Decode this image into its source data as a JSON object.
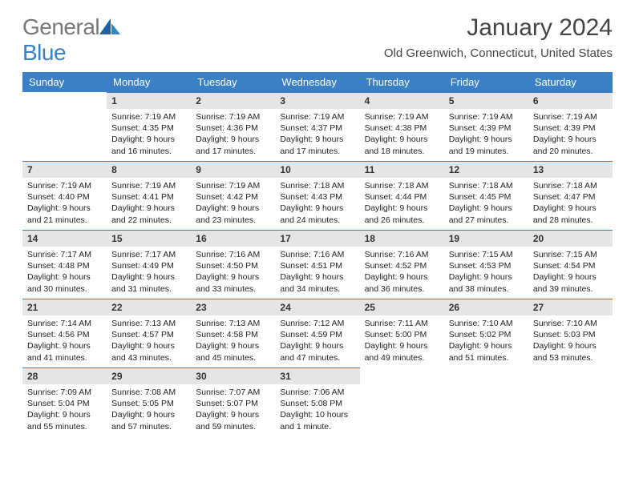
{
  "brand": {
    "part1": "General",
    "part2": "Blue"
  },
  "title": "January 2024",
  "location": "Old Greenwich, Connecticut, United States",
  "colors": {
    "header_bg": "#3b7fc4",
    "header_text": "#ffffff",
    "daynum_bg": "#e5e5e5",
    "daynum_border": "#3b7fc4",
    "page_bg": "#ffffff",
    "text": "#222222",
    "title_color": "#444444"
  },
  "font": {
    "family": "Arial",
    "title_size": 30,
    "header_size": 13,
    "body_size": 10.5,
    "daynum_size": 12
  },
  "weekdays": [
    "Sunday",
    "Monday",
    "Tuesday",
    "Wednesday",
    "Thursday",
    "Friday",
    "Saturday"
  ],
  "weeks": [
    [
      null,
      {
        "n": "1",
        "sr": "Sunrise: 7:19 AM",
        "ss": "Sunset: 4:35 PM",
        "dl": "Daylight: 9 hours and 16 minutes."
      },
      {
        "n": "2",
        "sr": "Sunrise: 7:19 AM",
        "ss": "Sunset: 4:36 PM",
        "dl": "Daylight: 9 hours and 17 minutes."
      },
      {
        "n": "3",
        "sr": "Sunrise: 7:19 AM",
        "ss": "Sunset: 4:37 PM",
        "dl": "Daylight: 9 hours and 17 minutes."
      },
      {
        "n": "4",
        "sr": "Sunrise: 7:19 AM",
        "ss": "Sunset: 4:38 PM",
        "dl": "Daylight: 9 hours and 18 minutes."
      },
      {
        "n": "5",
        "sr": "Sunrise: 7:19 AM",
        "ss": "Sunset: 4:39 PM",
        "dl": "Daylight: 9 hours and 19 minutes."
      },
      {
        "n": "6",
        "sr": "Sunrise: 7:19 AM",
        "ss": "Sunset: 4:39 PM",
        "dl": "Daylight: 9 hours and 20 minutes."
      }
    ],
    [
      {
        "n": "7",
        "sr": "Sunrise: 7:19 AM",
        "ss": "Sunset: 4:40 PM",
        "dl": "Daylight: 9 hours and 21 minutes."
      },
      {
        "n": "8",
        "sr": "Sunrise: 7:19 AM",
        "ss": "Sunset: 4:41 PM",
        "dl": "Daylight: 9 hours and 22 minutes."
      },
      {
        "n": "9",
        "sr": "Sunrise: 7:19 AM",
        "ss": "Sunset: 4:42 PM",
        "dl": "Daylight: 9 hours and 23 minutes."
      },
      {
        "n": "10",
        "sr": "Sunrise: 7:18 AM",
        "ss": "Sunset: 4:43 PM",
        "dl": "Daylight: 9 hours and 24 minutes."
      },
      {
        "n": "11",
        "sr": "Sunrise: 7:18 AM",
        "ss": "Sunset: 4:44 PM",
        "dl": "Daylight: 9 hours and 26 minutes."
      },
      {
        "n": "12",
        "sr": "Sunrise: 7:18 AM",
        "ss": "Sunset: 4:45 PM",
        "dl": "Daylight: 9 hours and 27 minutes."
      },
      {
        "n": "13",
        "sr": "Sunrise: 7:18 AM",
        "ss": "Sunset: 4:47 PM",
        "dl": "Daylight: 9 hours and 28 minutes."
      }
    ],
    [
      {
        "n": "14",
        "sr": "Sunrise: 7:17 AM",
        "ss": "Sunset: 4:48 PM",
        "dl": "Daylight: 9 hours and 30 minutes."
      },
      {
        "n": "15",
        "sr": "Sunrise: 7:17 AM",
        "ss": "Sunset: 4:49 PM",
        "dl": "Daylight: 9 hours and 31 minutes."
      },
      {
        "n": "16",
        "sr": "Sunrise: 7:16 AM",
        "ss": "Sunset: 4:50 PM",
        "dl": "Daylight: 9 hours and 33 minutes."
      },
      {
        "n": "17",
        "sr": "Sunrise: 7:16 AM",
        "ss": "Sunset: 4:51 PM",
        "dl": "Daylight: 9 hours and 34 minutes."
      },
      {
        "n": "18",
        "sr": "Sunrise: 7:16 AM",
        "ss": "Sunset: 4:52 PM",
        "dl": "Daylight: 9 hours and 36 minutes."
      },
      {
        "n": "19",
        "sr": "Sunrise: 7:15 AM",
        "ss": "Sunset: 4:53 PM",
        "dl": "Daylight: 9 hours and 38 minutes."
      },
      {
        "n": "20",
        "sr": "Sunrise: 7:15 AM",
        "ss": "Sunset: 4:54 PM",
        "dl": "Daylight: 9 hours and 39 minutes."
      }
    ],
    [
      {
        "n": "21",
        "sr": "Sunrise: 7:14 AM",
        "ss": "Sunset: 4:56 PM",
        "dl": "Daylight: 9 hours and 41 minutes."
      },
      {
        "n": "22",
        "sr": "Sunrise: 7:13 AM",
        "ss": "Sunset: 4:57 PM",
        "dl": "Daylight: 9 hours and 43 minutes."
      },
      {
        "n": "23",
        "sr": "Sunrise: 7:13 AM",
        "ss": "Sunset: 4:58 PM",
        "dl": "Daylight: 9 hours and 45 minutes."
      },
      {
        "n": "24",
        "sr": "Sunrise: 7:12 AM",
        "ss": "Sunset: 4:59 PM",
        "dl": "Daylight: 9 hours and 47 minutes."
      },
      {
        "n": "25",
        "sr": "Sunrise: 7:11 AM",
        "ss": "Sunset: 5:00 PM",
        "dl": "Daylight: 9 hours and 49 minutes."
      },
      {
        "n": "26",
        "sr": "Sunrise: 7:10 AM",
        "ss": "Sunset: 5:02 PM",
        "dl": "Daylight: 9 hours and 51 minutes."
      },
      {
        "n": "27",
        "sr": "Sunrise: 7:10 AM",
        "ss": "Sunset: 5:03 PM",
        "dl": "Daylight: 9 hours and 53 minutes."
      }
    ],
    [
      {
        "n": "28",
        "sr": "Sunrise: 7:09 AM",
        "ss": "Sunset: 5:04 PM",
        "dl": "Daylight: 9 hours and 55 minutes."
      },
      {
        "n": "29",
        "sr": "Sunrise: 7:08 AM",
        "ss": "Sunset: 5:05 PM",
        "dl": "Daylight: 9 hours and 57 minutes."
      },
      {
        "n": "30",
        "sr": "Sunrise: 7:07 AM",
        "ss": "Sunset: 5:07 PM",
        "dl": "Daylight: 9 hours and 59 minutes."
      },
      {
        "n": "31",
        "sr": "Sunrise: 7:06 AM",
        "ss": "Sunset: 5:08 PM",
        "dl": "Daylight: 10 hours and 1 minute."
      },
      null,
      null,
      null
    ]
  ]
}
